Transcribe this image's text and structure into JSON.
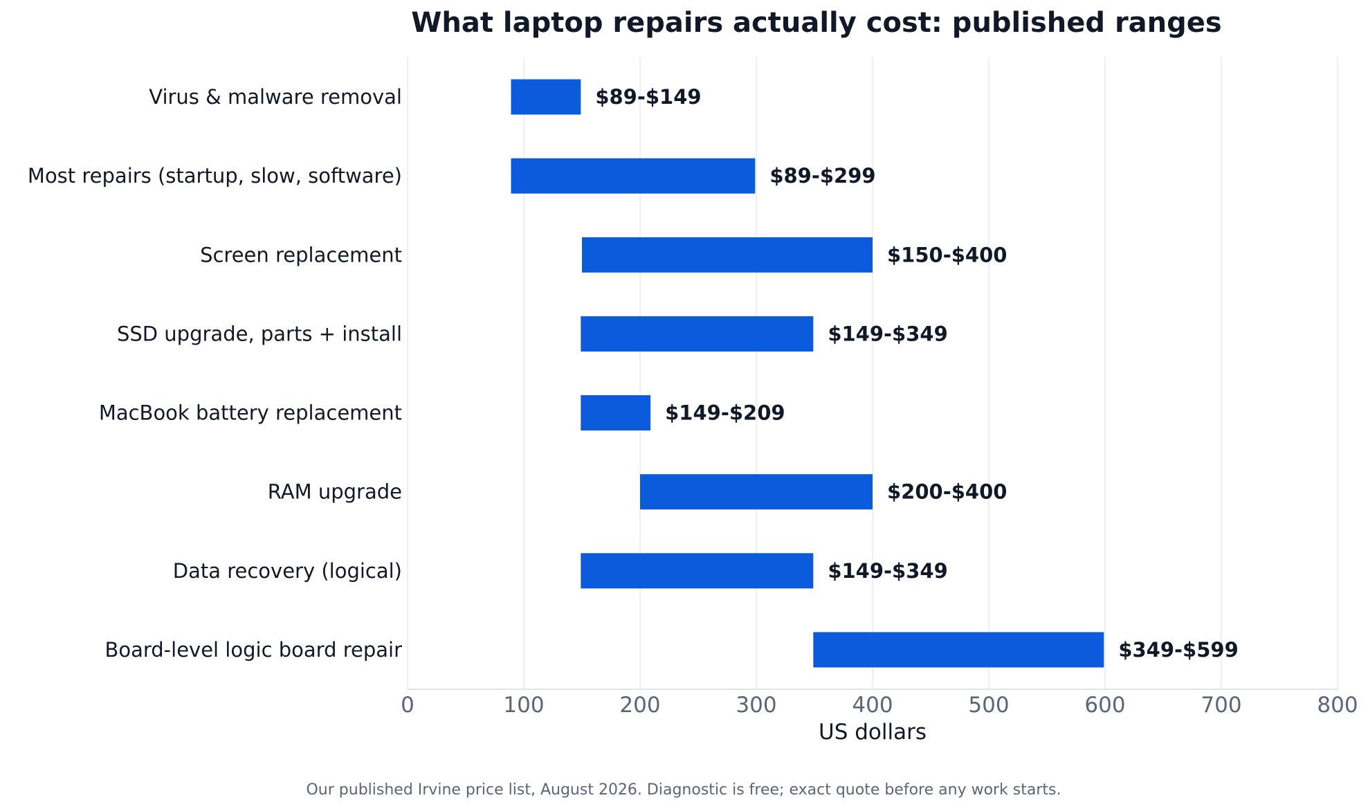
{
  "chart_data": {
    "type": "bar",
    "orientation": "horizontal",
    "title": "What laptop repairs actually cost: published ranges",
    "xlabel": "US dollars",
    "ylabel": "",
    "xlim": [
      0,
      800
    ],
    "xticks": [
      0,
      100,
      200,
      300,
      400,
      500,
      600,
      700,
      800
    ],
    "grid": true,
    "bar_color": "#0b5bdc",
    "categories": [
      "Virus & malware removal",
      "Most repairs (startup, slow, software)",
      "Screen replacement",
      "SSD upgrade, parts + install",
      "MacBook battery replacement",
      "RAM upgrade",
      "Data recovery (logical)",
      "Board-level logic board repair"
    ],
    "ranges": [
      [
        89,
        149
      ],
      [
        89,
        299
      ],
      [
        150,
        400
      ],
      [
        149,
        349
      ],
      [
        149,
        209
      ],
      [
        200,
        400
      ],
      [
        149,
        349
      ],
      [
        349,
        599
      ]
    ],
    "data_labels": [
      "$89-$149",
      "$89-$299",
      "$150-$400",
      "$149-$349",
      "$149-$209",
      "$200-$400",
      "$149-$349",
      "$349-$599"
    ],
    "footnote": "Our published Irvine price list, August 2026. Diagnostic is free; exact quote before any work starts."
  }
}
